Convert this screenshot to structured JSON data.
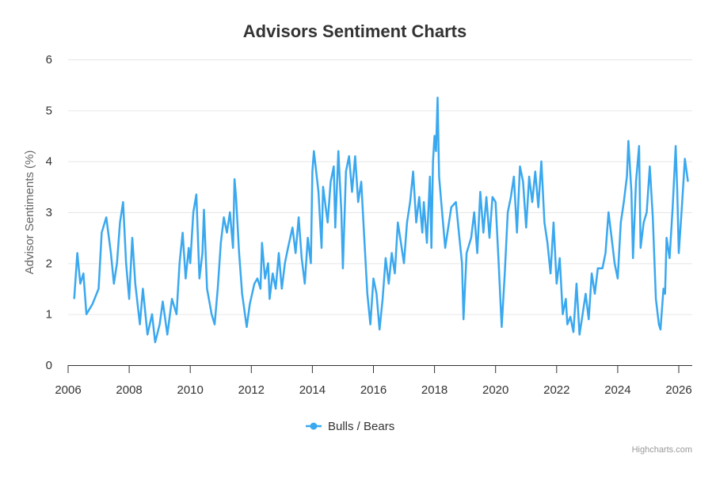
{
  "chart_data": {
    "type": "line",
    "title": "Advisors Sentiment Charts",
    "xlabel": "",
    "ylabel": "Advisor Sentiments (%)",
    "xlim": [
      2006,
      2026.4
    ],
    "ylim": [
      0,
      6
    ],
    "x_ticks": [
      "2006",
      "2008",
      "2010",
      "2012",
      "2014",
      "2016",
      "2018",
      "2020",
      "2022",
      "2024",
      "2026"
    ],
    "y_ticks": [
      "0",
      "1",
      "2",
      "3",
      "4",
      "5",
      "6"
    ],
    "grid": true,
    "legend_position": "bottom",
    "series": [
      {
        "name": "Bulls / Bears",
        "color": "#3aa8ef",
        "points": [
          [
            2006.2,
            1.3
          ],
          [
            2006.3,
            2.2
          ],
          [
            2006.4,
            1.6
          ],
          [
            2006.5,
            1.8
          ],
          [
            2006.6,
            1.0
          ],
          [
            2006.8,
            1.2
          ],
          [
            2007.0,
            1.5
          ],
          [
            2007.1,
            2.6
          ],
          [
            2007.25,
            2.9
          ],
          [
            2007.4,
            2.2
          ],
          [
            2007.5,
            1.6
          ],
          [
            2007.6,
            2.0
          ],
          [
            2007.7,
            2.8
          ],
          [
            2007.8,
            3.2
          ],
          [
            2007.9,
            2.0
          ],
          [
            2008.0,
            1.3
          ],
          [
            2008.1,
            2.5
          ],
          [
            2008.2,
            1.6
          ],
          [
            2008.35,
            0.8
          ],
          [
            2008.45,
            1.5
          ],
          [
            2008.6,
            0.6
          ],
          [
            2008.75,
            1.0
          ],
          [
            2008.85,
            0.45
          ],
          [
            2009.0,
            0.8
          ],
          [
            2009.1,
            1.25
          ],
          [
            2009.25,
            0.6
          ],
          [
            2009.4,
            1.3
          ],
          [
            2009.55,
            1.0
          ],
          [
            2009.65,
            2.0
          ],
          [
            2009.75,
            2.6
          ],
          [
            2009.85,
            1.7
          ],
          [
            2009.95,
            2.3
          ],
          [
            2010.0,
            2.0
          ],
          [
            2010.1,
            3.0
          ],
          [
            2010.2,
            3.35
          ],
          [
            2010.3,
            1.7
          ],
          [
            2010.4,
            2.2
          ],
          [
            2010.45,
            3.05
          ],
          [
            2010.55,
            1.5
          ],
          [
            2010.7,
            1.0
          ],
          [
            2010.8,
            0.8
          ],
          [
            2010.9,
            1.5
          ],
          [
            2011.0,
            2.4
          ],
          [
            2011.1,
            2.9
          ],
          [
            2011.2,
            2.6
          ],
          [
            2011.3,
            3.0
          ],
          [
            2011.4,
            2.3
          ],
          [
            2011.45,
            3.65
          ],
          [
            2011.5,
            3.3
          ],
          [
            2011.6,
            2.2
          ],
          [
            2011.7,
            1.4
          ],
          [
            2011.85,
            0.75
          ],
          [
            2011.95,
            1.2
          ],
          [
            2012.1,
            1.6
          ],
          [
            2012.2,
            1.7
          ],
          [
            2012.3,
            1.5
          ],
          [
            2012.35,
            2.4
          ],
          [
            2012.45,
            1.7
          ],
          [
            2012.55,
            2.0
          ],
          [
            2012.6,
            1.3
          ],
          [
            2012.7,
            1.8
          ],
          [
            2012.8,
            1.5
          ],
          [
            2012.9,
            2.2
          ],
          [
            2013.0,
            1.5
          ],
          [
            2013.1,
            2.0
          ],
          [
            2013.2,
            2.3
          ],
          [
            2013.35,
            2.7
          ],
          [
            2013.45,
            2.2
          ],
          [
            2013.55,
            2.9
          ],
          [
            2013.65,
            2.1
          ],
          [
            2013.75,
            1.6
          ],
          [
            2013.85,
            2.5
          ],
          [
            2013.95,
            2.0
          ],
          [
            2014.0,
            3.8
          ],
          [
            2014.05,
            4.2
          ],
          [
            2014.2,
            3.4
          ],
          [
            2014.3,
            2.3
          ],
          [
            2014.35,
            3.5
          ],
          [
            2014.5,
            2.8
          ],
          [
            2014.6,
            3.6
          ],
          [
            2014.7,
            3.9
          ],
          [
            2014.75,
            2.7
          ],
          [
            2014.85,
            4.2
          ],
          [
            2014.95,
            3.0
          ],
          [
            2015.0,
            1.9
          ],
          [
            2015.1,
            3.8
          ],
          [
            2015.2,
            4.1
          ],
          [
            2015.3,
            3.4
          ],
          [
            2015.4,
            4.1
          ],
          [
            2015.5,
            3.2
          ],
          [
            2015.6,
            3.6
          ],
          [
            2015.7,
            2.5
          ],
          [
            2015.8,
            1.4
          ],
          [
            2015.9,
            0.8
          ],
          [
            2016.0,
            1.7
          ],
          [
            2016.1,
            1.4
          ],
          [
            2016.2,
            0.7
          ],
          [
            2016.3,
            1.3
          ],
          [
            2016.4,
            2.1
          ],
          [
            2016.5,
            1.6
          ],
          [
            2016.6,
            2.2
          ],
          [
            2016.7,
            1.8
          ],
          [
            2016.8,
            2.8
          ],
          [
            2016.9,
            2.4
          ],
          [
            2017.0,
            2.0
          ],
          [
            2017.1,
            2.8
          ],
          [
            2017.2,
            3.2
          ],
          [
            2017.3,
            3.8
          ],
          [
            2017.4,
            2.8
          ],
          [
            2017.5,
            3.3
          ],
          [
            2017.6,
            2.6
          ],
          [
            2017.65,
            3.2
          ],
          [
            2017.75,
            2.4
          ],
          [
            2017.85,
            3.7
          ],
          [
            2017.9,
            2.3
          ],
          [
            2017.95,
            4.0
          ],
          [
            2018.0,
            4.5
          ],
          [
            2018.05,
            4.2
          ],
          [
            2018.1,
            5.25
          ],
          [
            2018.15,
            3.7
          ],
          [
            2018.25,
            3.0
          ],
          [
            2018.35,
            2.3
          ],
          [
            2018.45,
            2.7
          ],
          [
            2018.55,
            3.1
          ],
          [
            2018.7,
            3.2
          ],
          [
            2018.8,
            2.6
          ],
          [
            2018.9,
            2.0
          ],
          [
            2018.95,
            0.9
          ],
          [
            2019.05,
            2.2
          ],
          [
            2019.2,
            2.5
          ],
          [
            2019.3,
            3.0
          ],
          [
            2019.4,
            2.2
          ],
          [
            2019.5,
            3.4
          ],
          [
            2019.6,
            2.6
          ],
          [
            2019.7,
            3.3
          ],
          [
            2019.8,
            2.5
          ],
          [
            2019.9,
            3.3
          ],
          [
            2020.0,
            3.2
          ],
          [
            2020.1,
            2.0
          ],
          [
            2020.2,
            0.75
          ],
          [
            2020.3,
            1.8
          ],
          [
            2020.4,
            3.0
          ],
          [
            2020.5,
            3.3
          ],
          [
            2020.6,
            3.7
          ],
          [
            2020.7,
            2.6
          ],
          [
            2020.8,
            3.9
          ],
          [
            2020.9,
            3.6
          ],
          [
            2021.0,
            2.7
          ],
          [
            2021.1,
            3.7
          ],
          [
            2021.2,
            3.2
          ],
          [
            2021.3,
            3.8
          ],
          [
            2021.4,
            3.1
          ],
          [
            2021.5,
            4.0
          ],
          [
            2021.6,
            2.8
          ],
          [
            2021.7,
            2.4
          ],
          [
            2021.8,
            1.8
          ],
          [
            2021.9,
            2.8
          ],
          [
            2022.0,
            1.6
          ],
          [
            2022.1,
            2.1
          ],
          [
            2022.2,
            1.0
          ],
          [
            2022.3,
            1.3
          ],
          [
            2022.35,
            0.8
          ],
          [
            2022.45,
            0.95
          ],
          [
            2022.55,
            0.65
          ],
          [
            2022.65,
            1.6
          ],
          [
            2022.75,
            0.6
          ],
          [
            2022.85,
            1.0
          ],
          [
            2022.95,
            1.4
          ],
          [
            2023.05,
            0.9
          ],
          [
            2023.15,
            1.8
          ],
          [
            2023.25,
            1.4
          ],
          [
            2023.35,
            1.9
          ],
          [
            2023.5,
            1.9
          ],
          [
            2023.6,
            2.2
          ],
          [
            2023.7,
            3.0
          ],
          [
            2023.8,
            2.5
          ],
          [
            2023.9,
            2.0
          ],
          [
            2024.0,
            1.7
          ],
          [
            2024.1,
            2.8
          ],
          [
            2024.2,
            3.2
          ],
          [
            2024.3,
            3.7
          ],
          [
            2024.35,
            4.4
          ],
          [
            2024.45,
            3.4
          ],
          [
            2024.5,
            2.1
          ],
          [
            2024.6,
            3.6
          ],
          [
            2024.7,
            4.3
          ],
          [
            2024.75,
            2.3
          ],
          [
            2024.85,
            2.8
          ],
          [
            2024.95,
            3.0
          ],
          [
            2025.05,
            3.9
          ],
          [
            2025.15,
            2.9
          ],
          [
            2025.25,
            1.3
          ],
          [
            2025.35,
            0.8
          ],
          [
            2025.4,
            0.7
          ],
          [
            2025.5,
            1.5
          ],
          [
            2025.55,
            1.4
          ],
          [
            2025.6,
            2.5
          ],
          [
            2025.7,
            2.1
          ],
          [
            2025.8,
            3.1
          ],
          [
            2025.9,
            4.3
          ],
          [
            2025.95,
            3.4
          ],
          [
            2026.0,
            2.2
          ],
          [
            2026.1,
            3.1
          ],
          [
            2026.2,
            4.05
          ],
          [
            2026.3,
            3.6
          ]
        ]
      }
    ]
  },
  "credits": "Highcharts.com"
}
